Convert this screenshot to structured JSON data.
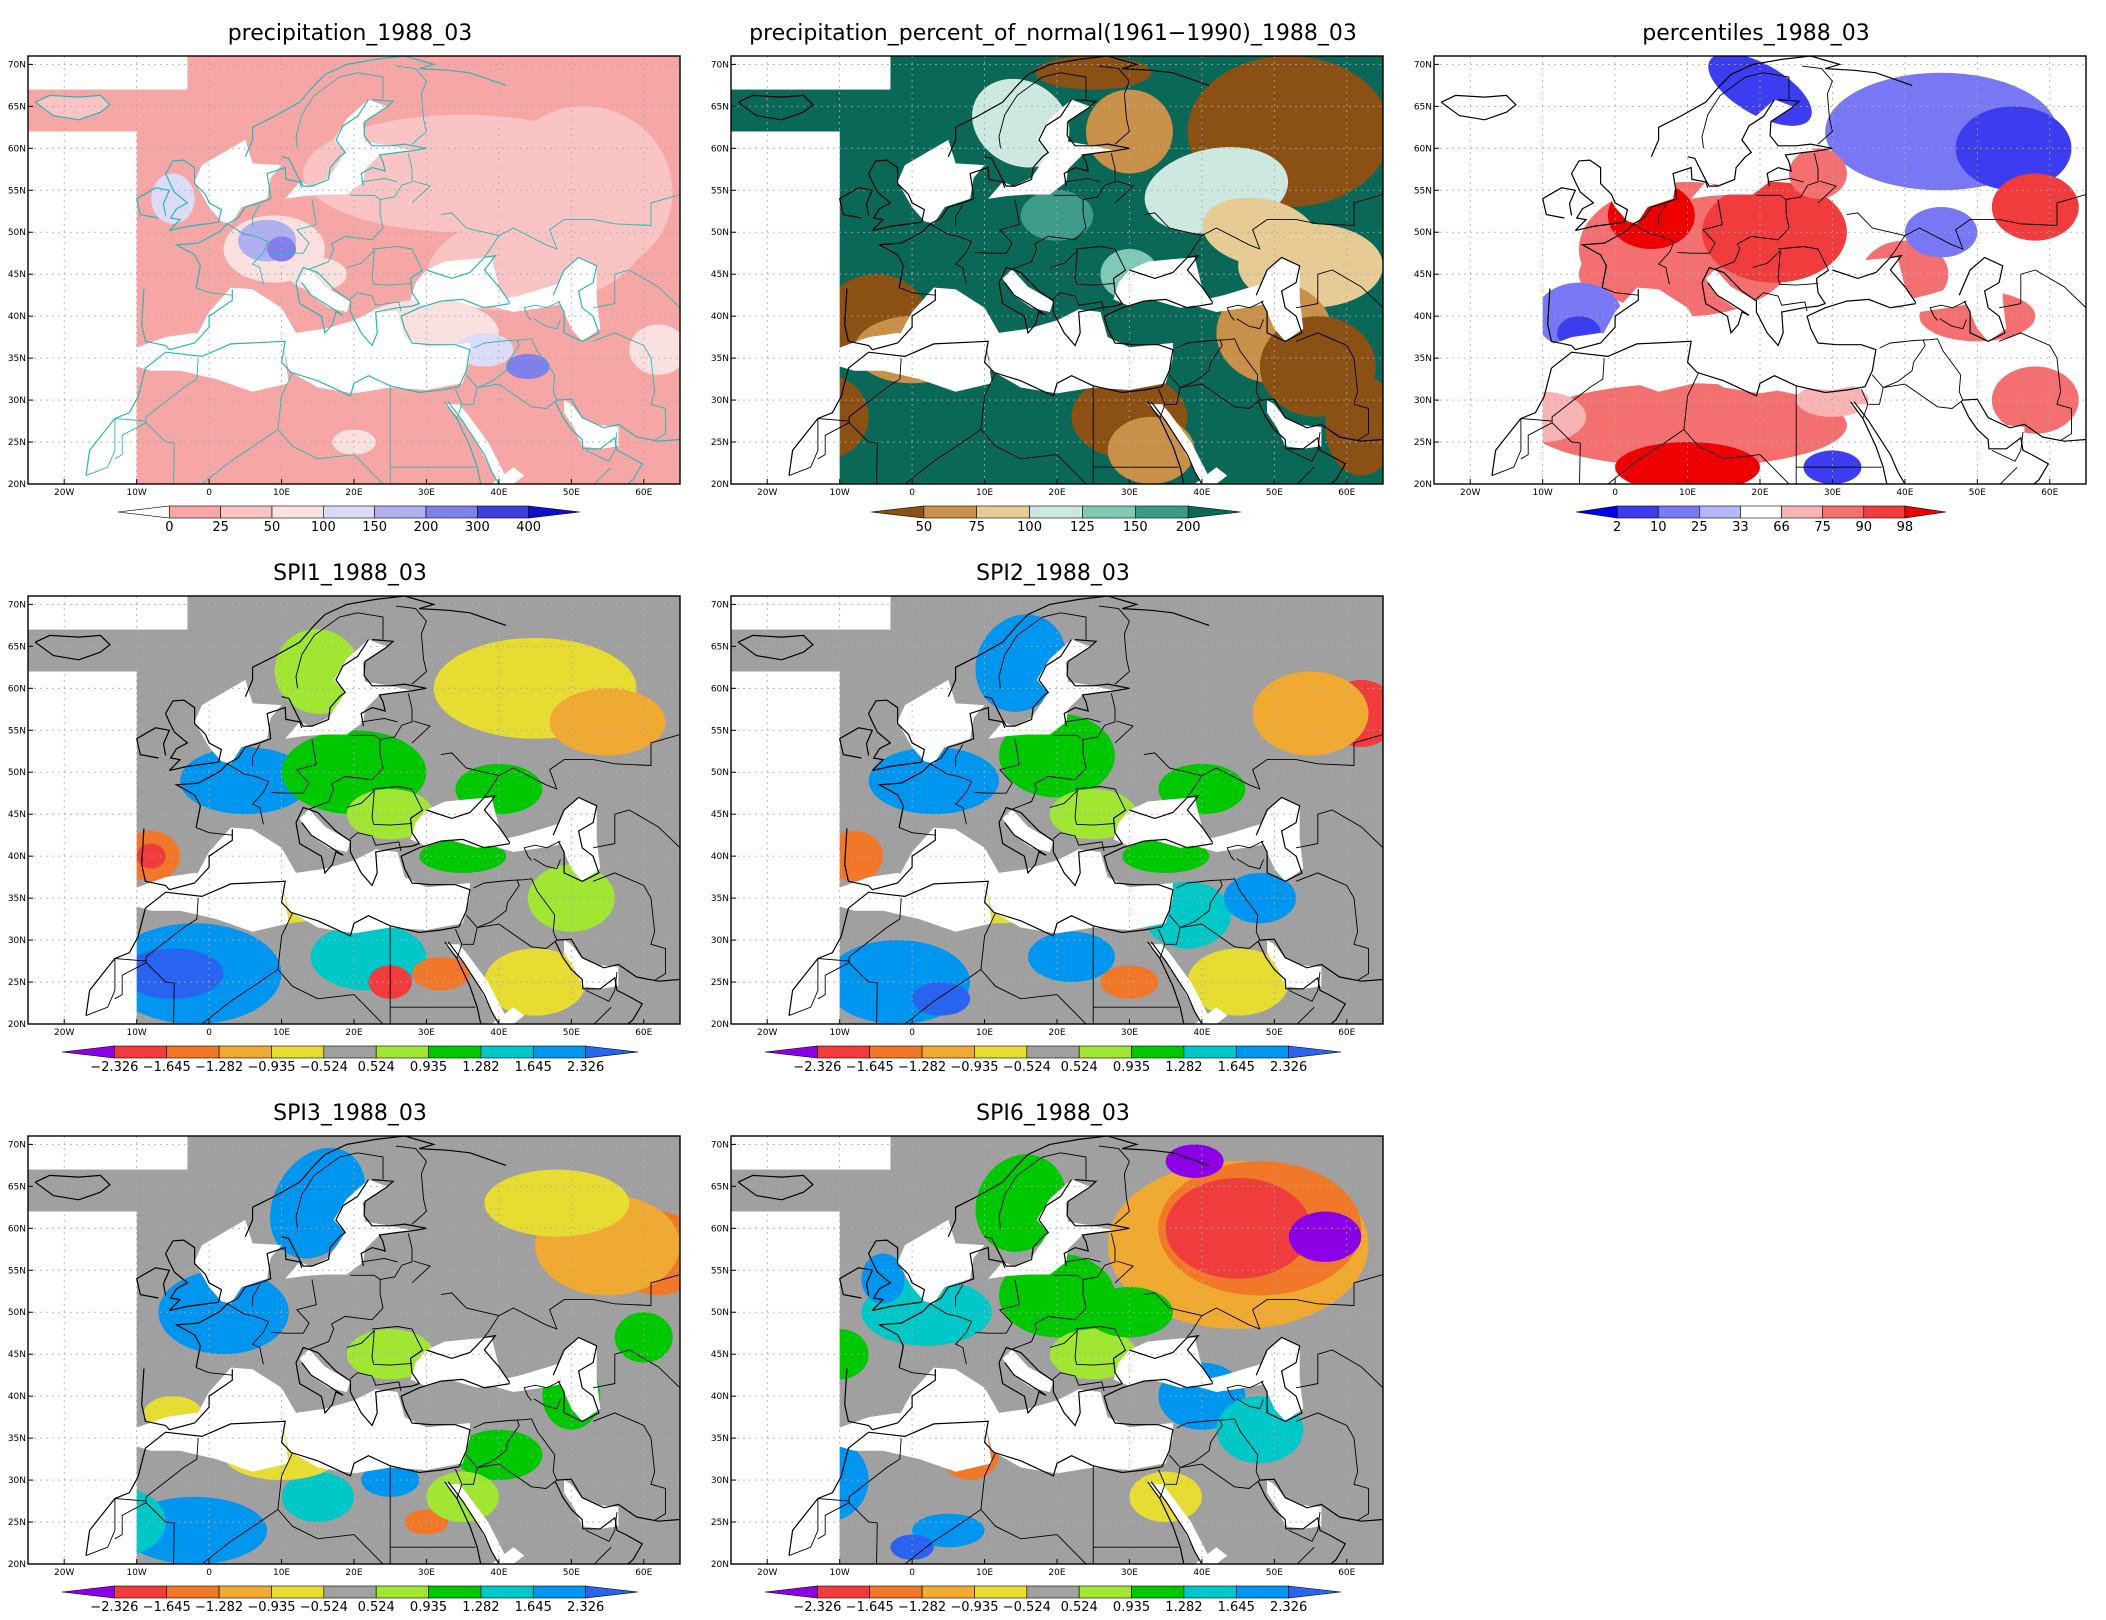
{
  "lat_ticks": [
    "70N",
    "65N",
    "60N",
    "55N",
    "50N",
    "45N",
    "40N",
    "35N",
    "30N",
    "25N",
    "20N"
  ],
  "lon_ticks": [
    "20W",
    "10W",
    "0",
    "10E",
    "20E",
    "30E",
    "40E",
    "50E",
    "60E"
  ],
  "colors": {
    "precip": [
      "#ffffff",
      "#f7a6a6",
      "#fbc4c4",
      "#fbe0e0",
      "#dcdcf8",
      "#b0b0f0",
      "#8080ea",
      "#4040dd",
      "#1010cc"
    ],
    "pct": [
      "#8a5014",
      "#c89048",
      "#e6cc94",
      "#cce8e0",
      "#80c8b8",
      "#3c9c88",
      "#0a6858"
    ],
    "perc": [
      "#0000ee",
      "#3c3cf0",
      "#7878f4",
      "#b4b4f8",
      "#ffffff",
      "#f8b4b4",
      "#f47070",
      "#f03c3c",
      "#ee0000"
    ],
    "spi": [
      "#8c00e6",
      "#f03c3c",
      "#f07828",
      "#f0aa32",
      "#e6dc32",
      "#a0a0a0",
      "#a0e632",
      "#00c800",
      "#00c8c8",
      "#0096f0",
      "#2864f0"
    ]
  },
  "panels": [
    {
      "id": "precipitation",
      "title": "precipitation_1988_03",
      "colorbar": {
        "labels": [
          "0",
          "25",
          "50",
          "100",
          "150",
          "200",
          "300",
          "400"
        ]
      }
    },
    {
      "id": "percent",
      "title": "precipitation_percent_of_normal(1961−1990)_1988_03",
      "colorbar": {
        "labels": [
          "50",
          "75",
          "100",
          "125",
          "150",
          "200"
        ]
      }
    },
    {
      "id": "percentiles",
      "title": "percentiles_1988_03",
      "colorbar": {
        "labels": [
          "2",
          "10",
          "25",
          "33",
          "66",
          "75",
          "90",
          "98"
        ]
      }
    },
    {
      "id": "spi1",
      "title": "SPI1_1988_03",
      "colorbar": {
        "labels": [
          "−2.326",
          "−1.645",
          "−1.282",
          "−0.935",
          "−0.524",
          "0.524",
          "0.935",
          "1.282",
          "1.645",
          "2.326"
        ]
      }
    },
    {
      "id": "spi2",
      "title": "SPI2_1988_03",
      "colorbar": {
        "labels": [
          "−2.326",
          "−1.645",
          "−1.282",
          "−0.935",
          "−0.524",
          "0.524",
          "0.935",
          "1.282",
          "1.645",
          "2.326"
        ]
      }
    },
    {
      "id": "spi3",
      "title": "SPI3_1988_03",
      "colorbar": {
        "labels": [
          "−2.326",
          "−1.645",
          "−1.282",
          "−0.935",
          "−0.524",
          "0.524",
          "0.935",
          "1.282",
          "1.645",
          "2.326"
        ]
      }
    },
    {
      "id": "spi6",
      "title": "SPI6_1988_03",
      "colorbar": {
        "labels": [
          "−2.326",
          "−1.645",
          "−1.282",
          "−0.935",
          "−0.524",
          "0.524",
          "0.935",
          "1.282",
          "1.645",
          "2.326"
        ]
      }
    }
  ]
}
